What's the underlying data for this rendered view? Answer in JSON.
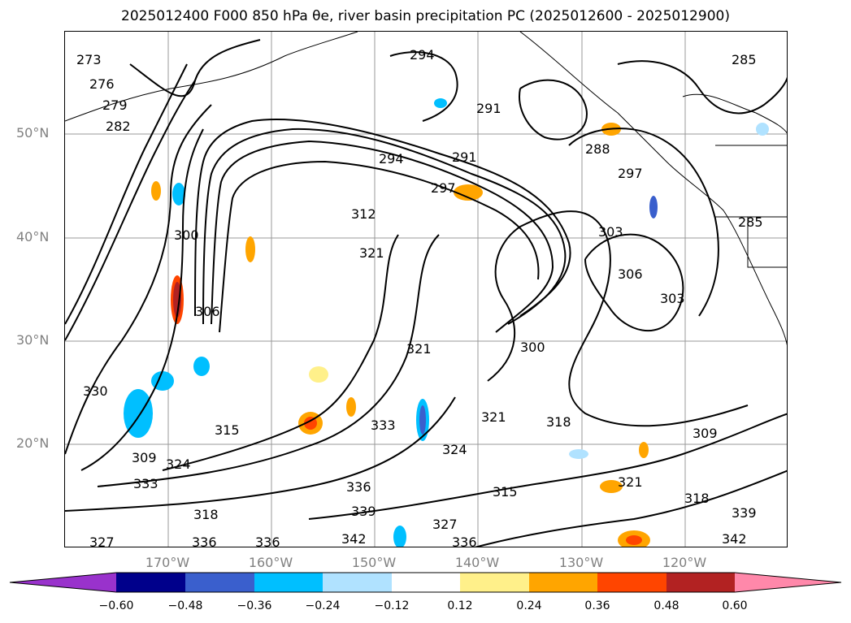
{
  "title_text": "2025012400 F000 850 hPa θe, river basin precipitation PC (2025012600 - 2025012900)",
  "map": {
    "lat_labels": [
      "50°N",
      "40°N",
      "30°N",
      "20°N"
    ],
    "lon_labels": [
      "170°W",
      "160°W",
      "150°W",
      "140°W",
      "130°W",
      "120°W"
    ],
    "contour_labels": [
      "273",
      "276",
      "279",
      "282",
      "285",
      "288",
      "291",
      "294",
      "297",
      "300",
      "303",
      "306",
      "309",
      "312",
      "315",
      "318",
      "321",
      "324",
      "327",
      "330",
      "333",
      "336",
      "339",
      "342"
    ]
  },
  "colorbar": {
    "tick_labels": [
      "−0.60",
      "−0.48",
      "−0.36",
      "−0.24",
      "−0.12",
      "0.12",
      "0.24",
      "0.36",
      "0.48",
      "0.60"
    ],
    "colors": [
      "#9932cc",
      "#00008b",
      "#3a5fcd",
      "#00bfff",
      "#b0e2ff",
      "#ffffff",
      "#fff08a",
      "#ffa500",
      "#ff4500",
      "#b22222",
      "#ff88aa"
    ]
  }
}
